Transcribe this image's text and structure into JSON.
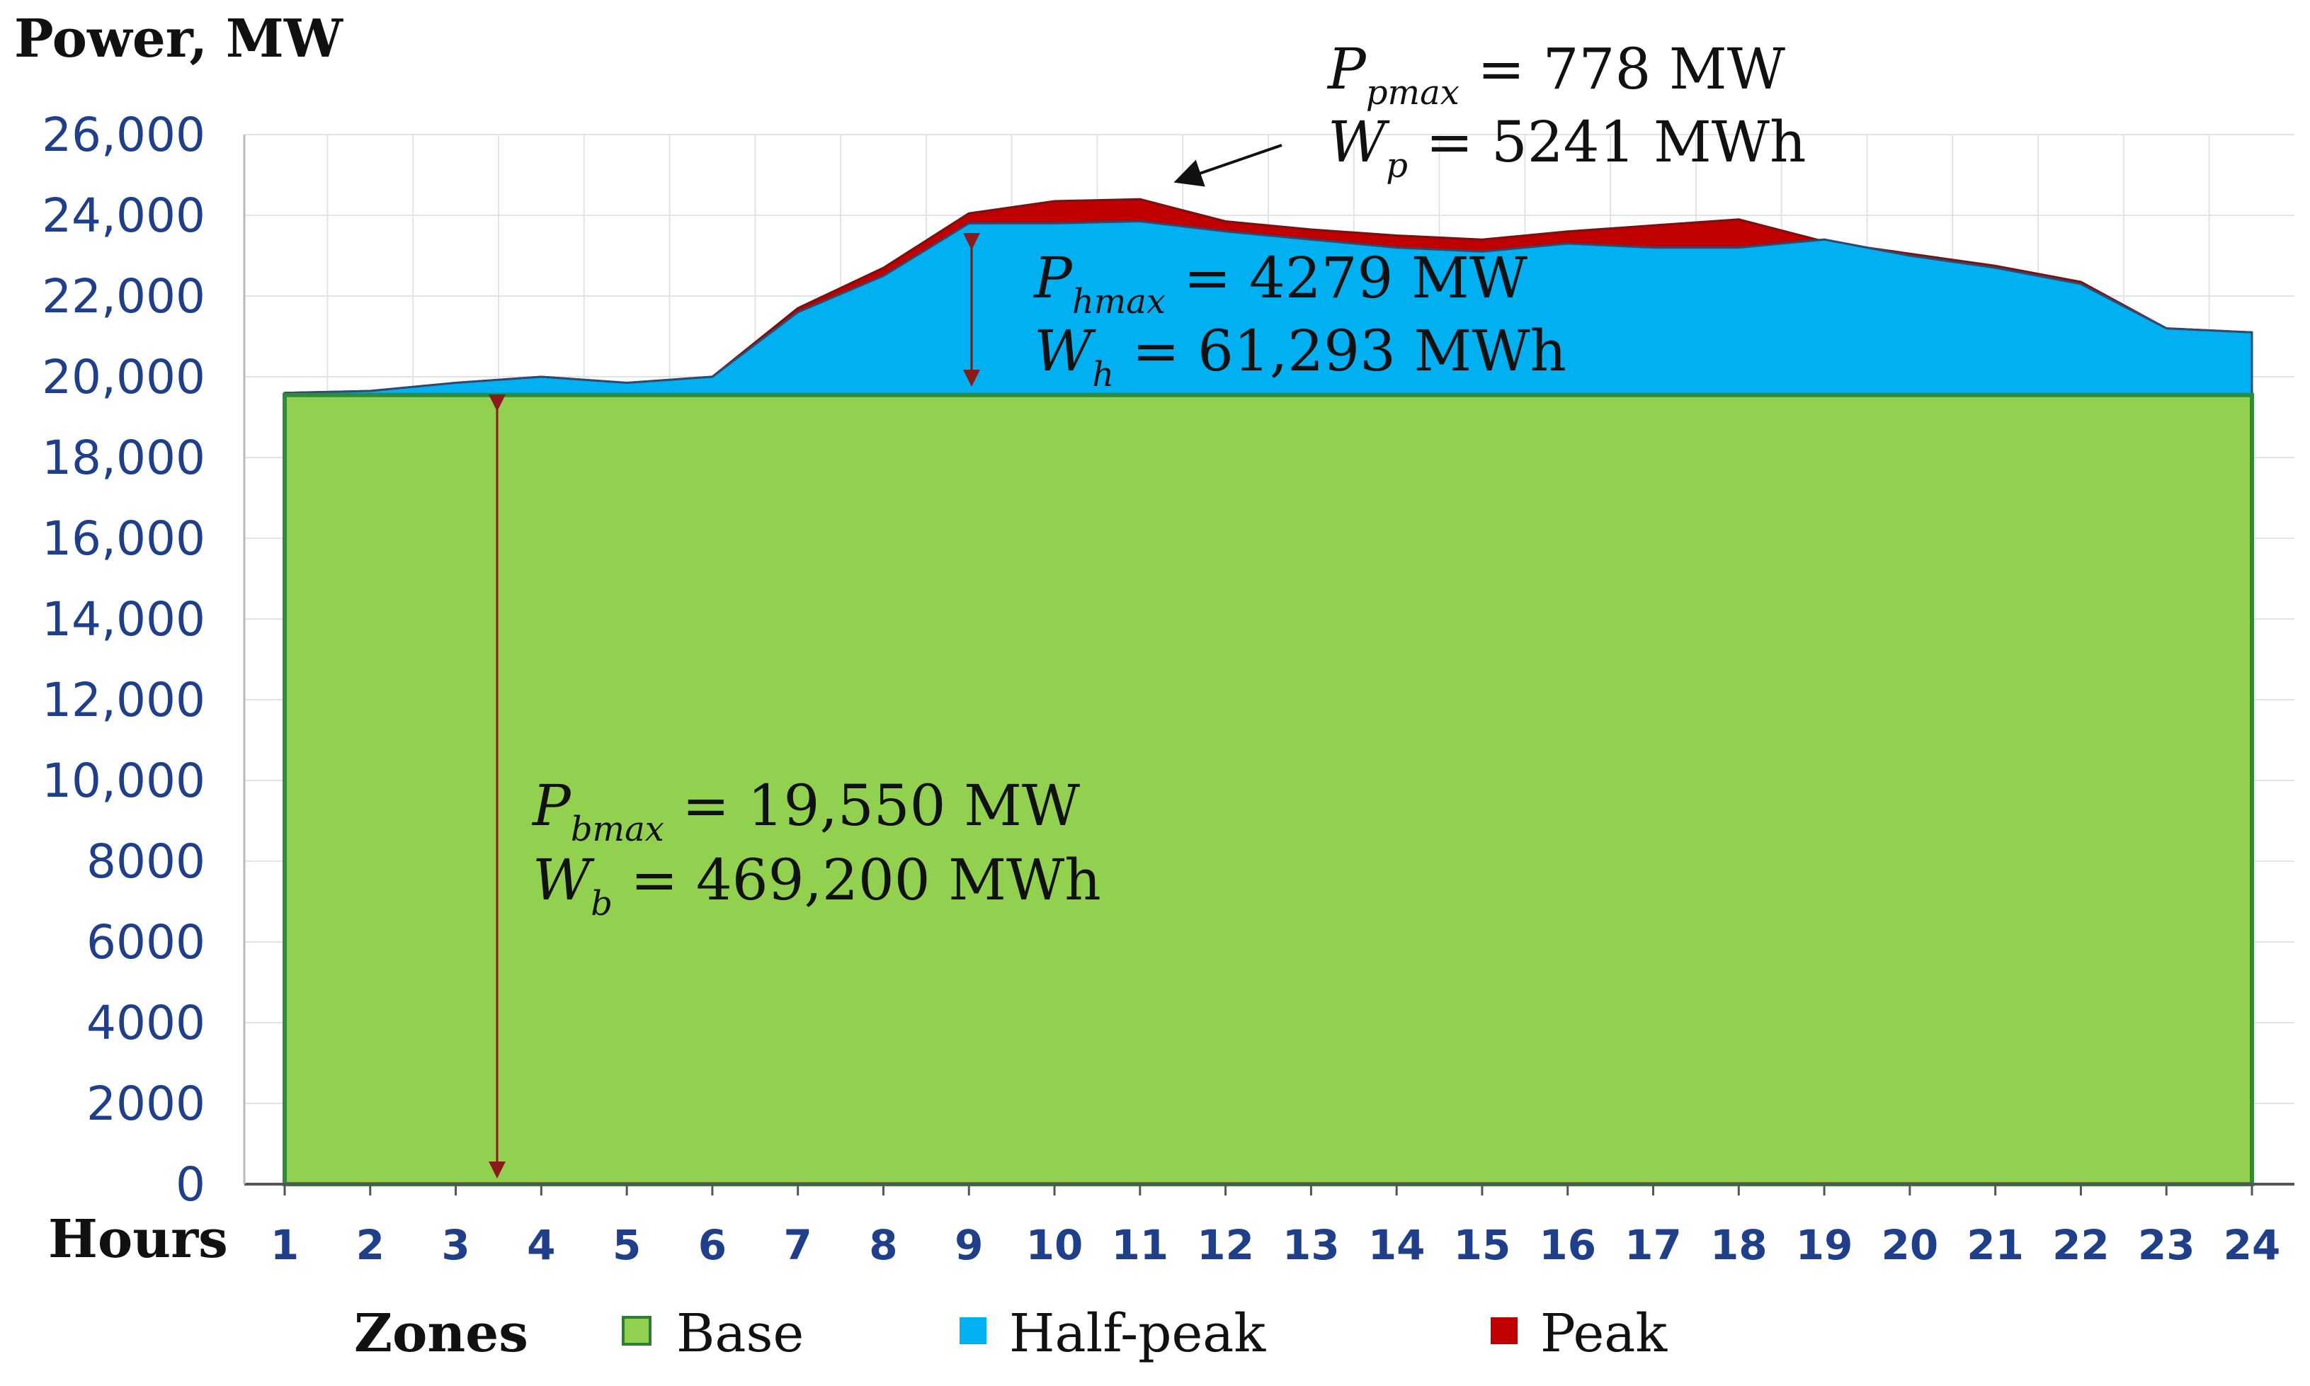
{
  "chart_data": {
    "type": "area",
    "ylabel": "Power, MW",
    "xlabel": "Hours",
    "ylim": [
      0,
      26000
    ],
    "y_ticks": [
      {
        "value": 0,
        "label": "0"
      },
      {
        "value": 2000,
        "label": "2000"
      },
      {
        "value": 4000,
        "label": "4000"
      },
      {
        "value": 6000,
        "label": "6000"
      },
      {
        "value": 8000,
        "label": "8000"
      },
      {
        "value": 10000,
        "label": "10,000"
      },
      {
        "value": 12000,
        "label": "12,000"
      },
      {
        "value": 14000,
        "label": "14,000"
      },
      {
        "value": 16000,
        "label": "16,000"
      },
      {
        "value": 18000,
        "label": "18,000"
      },
      {
        "value": 20000,
        "label": "20,000"
      },
      {
        "value": 22000,
        "label": "22,000"
      },
      {
        "value": 24000,
        "label": "24,000"
      },
      {
        "value": 26000,
        "label": "26,000"
      }
    ],
    "x": [
      1,
      2,
      3,
      4,
      5,
      6,
      7,
      8,
      9,
      10,
      11,
      12,
      13,
      14,
      15,
      16,
      17,
      18,
      19,
      20,
      21,
      22,
      23,
      24
    ],
    "x_labels": [
      "1",
      "2",
      "3",
      "4",
      "5",
      "6",
      "7",
      "8",
      "9",
      "10",
      "11",
      "12",
      "13",
      "14",
      "15",
      "16",
      "17",
      "18",
      "19",
      "20",
      "21",
      "22",
      "23",
      "24"
    ],
    "series": [
      {
        "name": "Base",
        "color": "#92d050",
        "values": [
          19550,
          19550,
          19550,
          19550,
          19550,
          19550,
          19550,
          19550,
          19550,
          19550,
          19550,
          19550,
          19550,
          19550,
          19550,
          19550,
          19550,
          19550,
          19550,
          19550,
          19550,
          19550,
          19550,
          19550
        ]
      },
      {
        "name": "Half-peak",
        "color": "#00b0f0",
        "values": [
          19600,
          19650,
          19850,
          20000,
          19850,
          20000,
          21600,
          22500,
          23800,
          23800,
          23850,
          23600,
          23400,
          23200,
          23100,
          23300,
          23200,
          23200,
          23400,
          23000,
          22700,
          22300,
          21200,
          21100
        ]
      },
      {
        "name": "Peak",
        "color": "#c00000",
        "values": [
          19600,
          19650,
          19850,
          20000,
          19850,
          20000,
          21700,
          22700,
          24050,
          24350,
          24400,
          23850,
          23650,
          23500,
          23400,
          23600,
          23750,
          23900,
          23350,
          23050,
          22750,
          22350,
          21200,
          21100
        ]
      }
    ],
    "legend": {
      "title": "Zones",
      "position": "bottom",
      "items": [
        "Base",
        "Half-peak",
        "Peak"
      ]
    },
    "annotations": [
      {
        "zone": "peak",
        "line1": {
          "symbol": "P",
          "subscript": "pmax",
          "text": " = 778 MW"
        },
        "line2": {
          "symbol": "W",
          "subscript": "p",
          "text": " = 5241 MWh"
        }
      },
      {
        "zone": "half-peak",
        "line1": {
          "symbol": "P",
          "subscript": "hmax",
          "text": " = 4279 MW"
        },
        "line2": {
          "symbol": "W",
          "subscript": "h",
          "text": " = 61,293 MWh"
        }
      },
      {
        "zone": "base",
        "line1": {
          "symbol": "P",
          "subscript": "bmax",
          "text": " = 19,550 MW"
        },
        "line2": {
          "symbol": "W",
          "subscript": "b",
          "text": " = 469,200 MWh"
        }
      }
    ]
  }
}
